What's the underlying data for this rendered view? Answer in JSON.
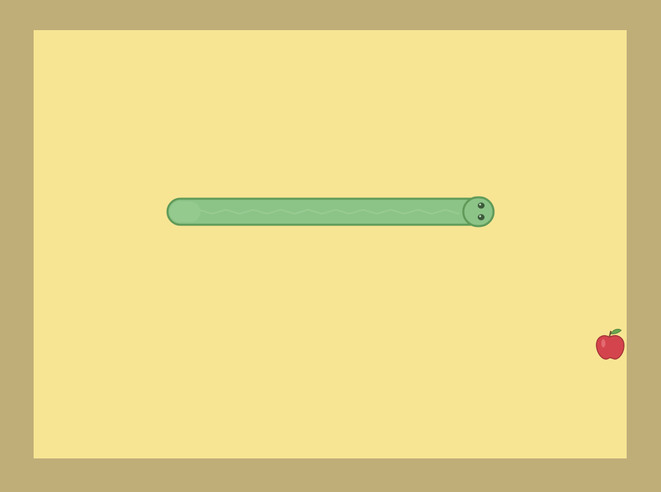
{
  "colors": {
    "border": "#bfae78",
    "field": "#f7e594",
    "snake_body": "#8cc487",
    "snake_outline": "#5f9a59",
    "snake_eye": "#3d5a3b",
    "apple_red": "#d4444c",
    "apple_leaf": "#6aa84f"
  },
  "icons": {
    "snake": "snake-icon",
    "apple": "apple-icon"
  }
}
